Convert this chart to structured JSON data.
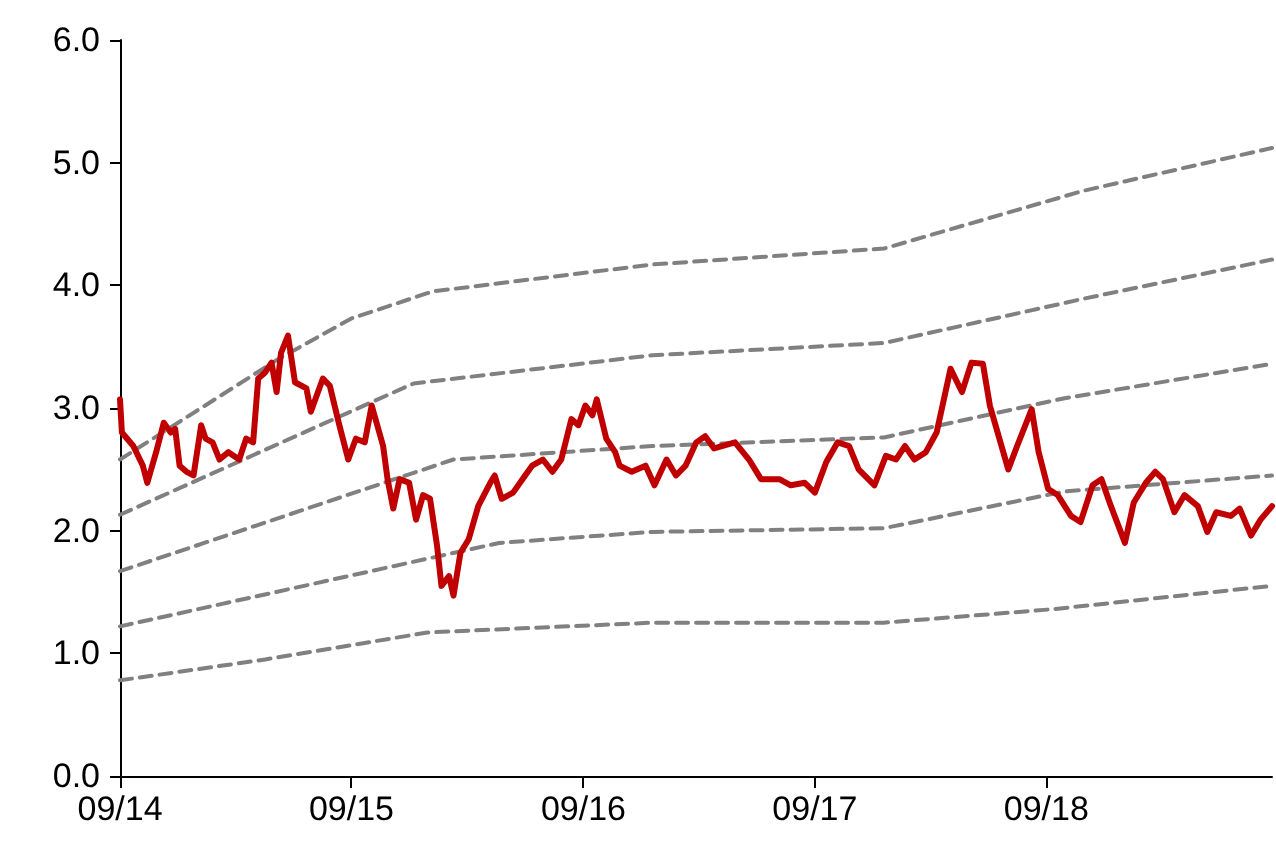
{
  "chart_data": {
    "type": "line",
    "marker": "none",
    "grid": false,
    "xlim": [
      "2014-09-01",
      "2019-08-23"
    ],
    "xticks": [
      {
        "value": "2014-09-01",
        "label": "09/14"
      },
      {
        "value": "2015-09-01",
        "label": "09/15"
      },
      {
        "value": "2016-09-01",
        "label": "09/16"
      },
      {
        "value": "2017-09-01",
        "label": "09/17"
      },
      {
        "value": "2018-09-01",
        "label": "09/18"
      }
    ],
    "ylim": [
      0,
      6
    ],
    "yticks": [
      {
        "value": 0,
        "label": "0.0"
      },
      {
        "value": 1,
        "label": "1.0"
      },
      {
        "value": 2,
        "label": "2.0"
      },
      {
        "value": 3,
        "label": "3.0"
      },
      {
        "value": 4,
        "label": "4.0"
      },
      {
        "value": 5,
        "label": "5.0"
      },
      {
        "value": 6,
        "label": "6.0"
      }
    ],
    "series": [
      {
        "color": "#808080",
        "line_style": "dashed",
        "x": [
          "2014-09-01",
          "2015-05-09",
          "2015-09-01",
          "2016-01-07",
          "2016-12-19",
          "2017-12-19",
          "2018-10-29",
          "2019-08-23"
        ],
        "values": [
          2.58,
          3.4,
          3.73,
          3.95,
          4.17,
          4.3,
          4.77,
          5.12
        ]
      },
      {
        "color": "#808080",
        "line_style": "dashed",
        "x": [
          "2014-09-01",
          "2015-12-08",
          "2016-12-19",
          "2017-12-19",
          "2018-10-29",
          "2019-08-23"
        ],
        "values": [
          2.13,
          3.2,
          3.43,
          3.53,
          3.89,
          4.21
        ]
      },
      {
        "color": "#808080",
        "line_style": "dashed",
        "x": [
          "2014-09-01",
          "2016-02-09",
          "2016-12-19",
          "2017-12-19",
          "2018-09-30",
          "2019-08-23"
        ],
        "values": [
          1.67,
          2.58,
          2.69,
          2.76,
          3.08,
          3.36
        ]
      },
      {
        "color": "#808080",
        "line_style": "dashed",
        "x": [
          "2014-09-01",
          "2016-04-21",
          "2016-12-19",
          "2017-12-19",
          "2018-09-30",
          "2019-08-23"
        ],
        "values": [
          1.22,
          1.9,
          1.99,
          2.02,
          2.32,
          2.45
        ]
      },
      {
        "color": "#808080",
        "line_style": "dashed",
        "x": [
          "2014-09-01",
          "2015-04-18",
          "2015-12-30",
          "2016-12-19",
          "2017-12-19",
          "2018-09-12",
          "2019-08-23"
        ],
        "values": [
          0.78,
          0.95,
          1.17,
          1.25,
          1.25,
          1.36,
          1.55
        ]
      },
      {
        "color": "#c00000",
        "line_style": "solid",
        "x": [
          "2014-09-01",
          "2014-09-04",
          "2014-09-22",
          "2014-10-07",
          "2014-10-14",
          "2014-10-28",
          "2014-11-09",
          "2014-11-20",
          "2014-11-27",
          "2014-12-04",
          "2014-12-15",
          "2014-12-26",
          "2015-01-07",
          "2015-01-14",
          "2015-01-25",
          "2015-02-05",
          "2015-02-19",
          "2015-03-08",
          "2015-03-19",
          "2015-03-30",
          "2015-04-07",
          "2015-04-18",
          "2015-04-28",
          "2015-05-06",
          "2015-05-13",
          "2015-05-24",
          "2015-06-04",
          "2015-06-22",
          "2015-06-29",
          "2015-07-18",
          "2015-07-29",
          "2015-08-13",
          "2015-08-27",
          "2015-09-08",
          "2015-09-22",
          "2015-10-03",
          "2015-10-21",
          "2015-10-28",
          "2015-11-06",
          "2015-11-16",
          "2015-12-01",
          "2015-12-12",
          "2015-12-23",
          "2016-01-03",
          "2016-01-14",
          "2016-01-21",
          "2016-02-02",
          "2016-02-09",
          "2016-02-20",
          "2016-03-04",
          "2016-03-19",
          "2016-04-07",
          "2016-04-14",
          "2016-04-25",
          "2016-05-13",
          "2016-06-01",
          "2016-06-12",
          "2016-06-29",
          "2016-07-14",
          "2016-07-28",
          "2016-08-13",
          "2016-08-24",
          "2016-09-04",
          "2016-09-15",
          "2016-09-22",
          "2016-10-07",
          "2016-10-21",
          "2016-10-28",
          "2016-11-16",
          "2016-12-08",
          "2016-12-22",
          "2017-01-10",
          "2017-01-25",
          "2017-02-09",
          "2017-02-26",
          "2017-03-12",
          "2017-03-26",
          "2017-04-28",
          "2017-05-20",
          "2017-06-08",
          "2017-07-07",
          "2017-07-25",
          "2017-08-16",
          "2017-09-01",
          "2017-09-19",
          "2017-10-07",
          "2017-10-25",
          "2017-11-09",
          "2017-12-04",
          "2017-12-22",
          "2018-01-07",
          "2018-01-21",
          "2018-02-05",
          "2018-02-23",
          "2018-03-12",
          "2018-04-03",
          "2018-04-21",
          "2018-05-06",
          "2018-05-24",
          "2018-06-04",
          "2018-07-03",
          "2018-07-17",
          "2018-08-09",
          "2018-08-20",
          "2018-09-04",
          "2018-09-19",
          "2018-10-10",
          "2018-10-25",
          "2018-11-13",
          "2018-11-27",
          "2018-12-12",
          "2019-01-03",
          "2019-01-17",
          "2019-02-05",
          "2019-02-20",
          "2019-03-04",
          "2019-03-22",
          "2019-04-07",
          "2019-04-28",
          "2019-05-13",
          "2019-05-27",
          "2019-06-19",
          "2019-07-03",
          "2019-07-21",
          "2019-08-05",
          "2019-08-23"
        ],
        "values": [
          3.07,
          2.8,
          2.69,
          2.53,
          2.39,
          2.64,
          2.88,
          2.8,
          2.83,
          2.53,
          2.48,
          2.45,
          2.86,
          2.75,
          2.72,
          2.58,
          2.64,
          2.58,
          2.75,
          2.72,
          3.24,
          3.29,
          3.37,
          3.13,
          3.45,
          3.59,
          3.21,
          3.16,
          2.97,
          3.24,
          3.18,
          2.86,
          2.58,
          2.75,
          2.72,
          3.02,
          2.69,
          2.42,
          2.18,
          2.42,
          2.39,
          2.09,
          2.29,
          2.26,
          1.88,
          1.55,
          1.63,
          1.47,
          1.82,
          1.93,
          2.2,
          2.39,
          2.45,
          2.26,
          2.31,
          2.45,
          2.53,
          2.58,
          2.48,
          2.58,
          2.91,
          2.86,
          3.02,
          2.94,
          3.07,
          2.75,
          2.64,
          2.53,
          2.48,
          2.53,
          2.37,
          2.58,
          2.45,
          2.53,
          2.72,
          2.77,
          2.67,
          2.72,
          2.58,
          2.42,
          2.42,
          2.37,
          2.39,
          2.31,
          2.56,
          2.72,
          2.69,
          2.5,
          2.37,
          2.61,
          2.58,
          2.69,
          2.58,
          2.64,
          2.8,
          3.32,
          3.13,
          3.37,
          3.36,
          3.02,
          2.5,
          2.69,
          2.99,
          2.64,
          2.34,
          2.29,
          2.12,
          2.07,
          2.37,
          2.42,
          2.2,
          1.9,
          2.23,
          2.39,
          2.48,
          2.42,
          2.15,
          2.29,
          2.2,
          1.99,
          2.15,
          2.12,
          2.18,
          1.96,
          2.09,
          2.2
        ]
      }
    ]
  }
}
